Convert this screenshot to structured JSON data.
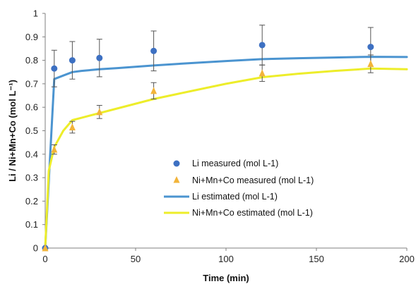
{
  "colors": {
    "li": "#3d70c2",
    "li_line": "#4b94d0",
    "ni": "#f2b43a",
    "ni_line": "#eded2a",
    "axis": "#7f7f7f",
    "error_bar": "#555555"
  },
  "chart_data": {
    "type": "scatter",
    "xlabel": "Time (min)",
    "ylabel": "Li  / Ni+Mn+Co (mol L⁻¹)",
    "xlim": [
      0,
      200
    ],
    "ylim": [
      0,
      1
    ],
    "x_ticks": [
      0,
      50,
      100,
      150,
      200
    ],
    "y_ticks": [
      0,
      0.1,
      0.2,
      0.3,
      0.4,
      0.5,
      0.6,
      0.7,
      0.8,
      0.9,
      1
    ],
    "x_tick_labels": [
      "0",
      "50",
      "100",
      "150",
      "200"
    ],
    "y_tick_labels": [
      "0",
      "0.1",
      "0.2",
      "0.3",
      "0.4",
      "0.5",
      "0.6",
      "0.7",
      "0.8",
      "0.9",
      "1"
    ],
    "grid": false,
    "legend_position": "center",
    "series": [
      {
        "name": "Li measured (mol L-1)",
        "kind": "markers",
        "marker": "circle",
        "color_key": "li",
        "x": [
          0,
          5,
          15,
          30,
          60,
          120,
          180
        ],
        "y": [
          0,
          0.765,
          0.8,
          0.81,
          0.84,
          0.865,
          0.857
        ],
        "err": [
          0,
          0.078,
          0.08,
          0.08,
          0.085,
          0.085,
          0.083
        ]
      },
      {
        "name": "Ni+Mn+Co measured (mol L-1)",
        "kind": "markers",
        "marker": "triangle",
        "color_key": "ni",
        "x": [
          0,
          5,
          15,
          30,
          60,
          120,
          180
        ],
        "y": [
          0,
          0.42,
          0.515,
          0.58,
          0.67,
          0.745,
          0.785
        ],
        "err": [
          0,
          0.02,
          0.025,
          0.028,
          0.035,
          0.035,
          0.038
        ]
      },
      {
        "name": "Li estimated (mol L-1)",
        "kind": "line",
        "color_key": "li_line",
        "x": [
          0,
          5,
          10,
          15,
          20,
          30,
          40,
          60,
          80,
          100,
          120,
          140,
          160,
          180,
          200
        ],
        "y": [
          0,
          0.72,
          0.735,
          0.75,
          0.755,
          0.762,
          0.767,
          0.778,
          0.788,
          0.797,
          0.805,
          0.809,
          0.812,
          0.815,
          0.814
        ]
      },
      {
        "name": "Ni+Mn+Co estimated (mol L-1)",
        "kind": "line",
        "color_key": "ni_line",
        "x": [
          0,
          2,
          5,
          10,
          15,
          20,
          30,
          45,
          60,
          80,
          100,
          120,
          140,
          160,
          180,
          200
        ],
        "y": [
          0,
          0.33,
          0.43,
          0.5,
          0.545,
          0.555,
          0.575,
          0.605,
          0.635,
          0.668,
          0.7,
          0.728,
          0.743,
          0.755,
          0.765,
          0.762
        ]
      }
    ]
  }
}
